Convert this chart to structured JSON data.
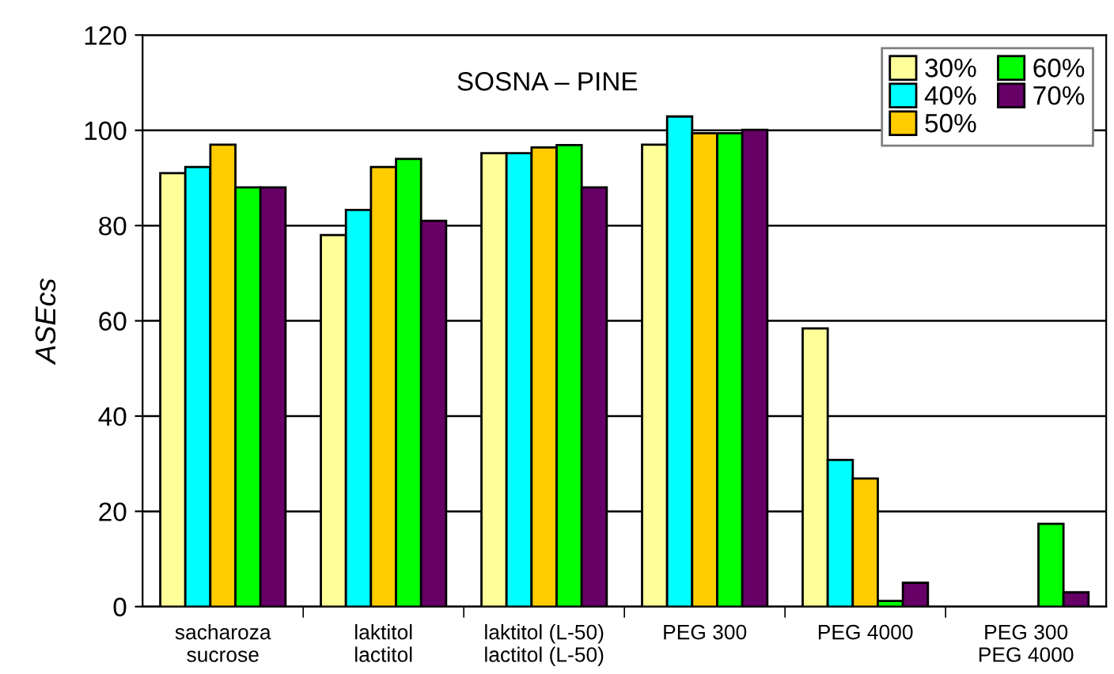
{
  "chart_data": {
    "type": "bar",
    "title": "SOSNA – PINE",
    "ylabel": "ASEcs",
    "categories": [
      "sacharoza\nsucrose",
      "laktitol\nlactitol",
      "laktitol (L-50)\nlactitol (L-50)",
      "PEG 300",
      "PEG 4000",
      "PEG 300\nPEG 4000"
    ],
    "series": [
      {
        "name": "30%",
        "color": "#ffff99",
        "values": [
          91.0,
          78.0,
          95.2,
          97.0,
          58.4,
          null
        ]
      },
      {
        "name": "40%",
        "color": "#00ffff",
        "values": [
          92.3,
          83.3,
          95.2,
          102.9,
          30.8,
          null
        ]
      },
      {
        "name": "50%",
        "color": "#ffcc00",
        "values": [
          97.0,
          92.3,
          96.4,
          99.4,
          26.9,
          null
        ]
      },
      {
        "name": "60%",
        "color": "#00ff00",
        "values": [
          88.0,
          94.0,
          96.9,
          99.4,
          1.2,
          17.4
        ]
      },
      {
        "name": "70%",
        "color": "#660066",
        "values": [
          88.0,
          81.0,
          88.0,
          100.1,
          5.0,
          3.0
        ]
      }
    ],
    "ylim": [
      0,
      120
    ],
    "yticks": [
      0,
      20,
      40,
      60,
      80,
      100,
      120
    ],
    "grid": "y",
    "legend": "top right"
  }
}
